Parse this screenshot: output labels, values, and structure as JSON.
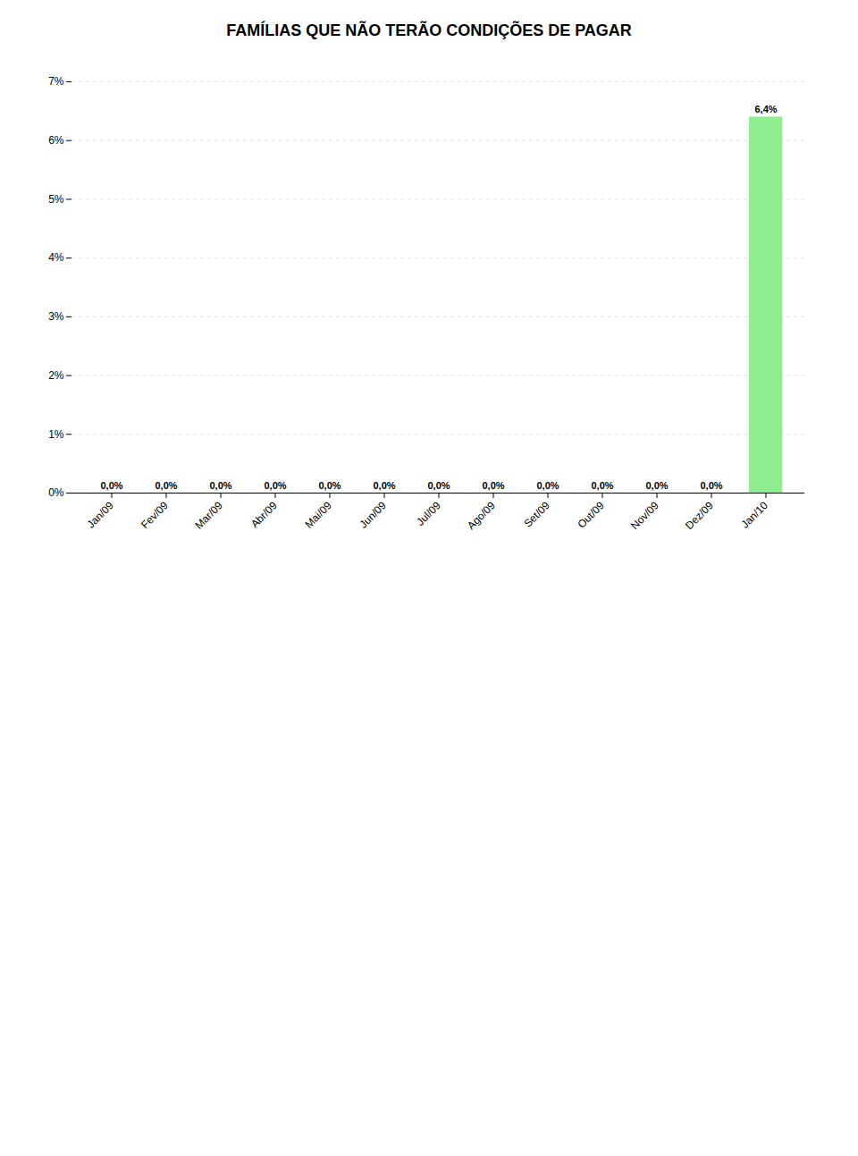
{
  "chart_data": {
    "type": "bar",
    "title": "FAMÍLIAS QUE NÃO TERÃO CONDIÇÕES DE PAGAR",
    "categories": [
      "Jan/09",
      "Fev/09",
      "Mar/09",
      "Abr/09",
      "Mai/09",
      "Jun/09",
      "Jul/09",
      "Ago/09",
      "Set/09",
      "Out/09",
      "Nov/09",
      "Dez/09",
      "Jan/10"
    ],
    "values": [
      0.0,
      0.0,
      0.0,
      0.0,
      0.0,
      0.0,
      0.0,
      0.0,
      0.0,
      0.0,
      0.0,
      0.0,
      6.4
    ],
    "value_labels": [
      "0,0%",
      "0,0%",
      "0,0%",
      "0,0%",
      "0,0%",
      "0,0%",
      "0,0%",
      "0,0%",
      "0,0%",
      "0,0%",
      "0,0%",
      "0,0%",
      "6,4%"
    ],
    "data_labels": true,
    "color": "#90EE90",
    "ylim": [
      0,
      7
    ],
    "yticks": [
      {
        "value": 0,
        "label": "0%"
      },
      {
        "value": 1,
        "label": "1%"
      },
      {
        "value": 2,
        "label": "2%"
      },
      {
        "value": 3,
        "label": "3%"
      },
      {
        "value": 4,
        "label": "4%"
      },
      {
        "value": 5,
        "label": "5%"
      },
      {
        "value": 6,
        "label": "6%"
      },
      {
        "value": 7,
        "label": "7%"
      }
    ],
    "grid": true
  }
}
